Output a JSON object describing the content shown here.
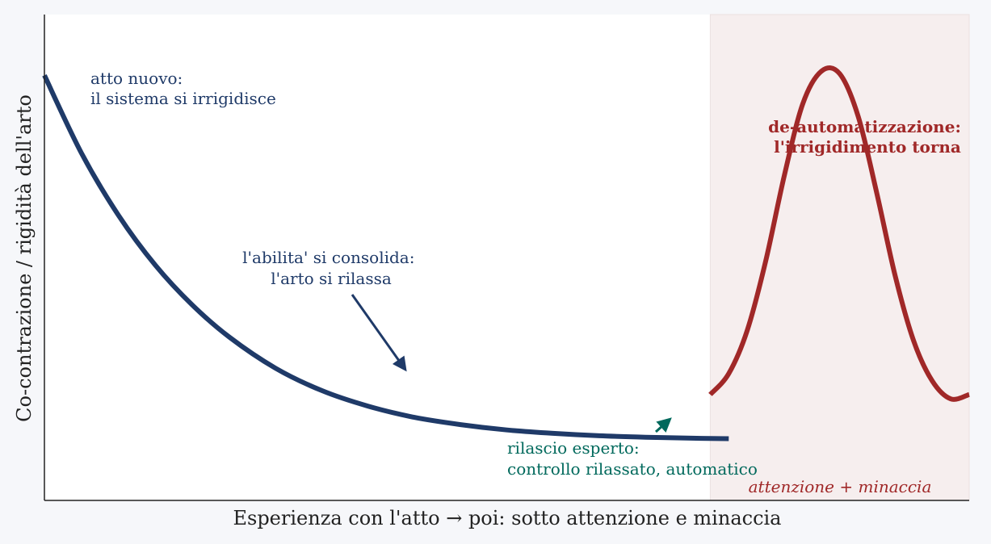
{
  "colors": {
    "page_bg": "#f6f7fa",
    "plot_bg": "#ffffff",
    "shaded_region": "#f6eeee",
    "learning_curve": "#1f3a68",
    "threat_curve": "#a02828",
    "expert_annotation": "#00695c",
    "axis": "#222222"
  },
  "chart_data": {
    "type": "line",
    "xlabel": "Esperienza con l'atto  →  poi: sotto attenzione e minaccia",
    "ylabel": "Co-contrazione / rigidità dell'arto",
    "xlim": [
      0,
      100
    ],
    "ylim": [
      0,
      100
    ],
    "grid": false,
    "ticks": false,
    "series": [
      {
        "role": "learning",
        "color": "#1f3a68",
        "x": [
          0,
          4,
          8,
          12,
          16,
          20,
          25,
          30,
          35,
          40,
          45,
          50,
          55,
          60,
          65,
          70,
          74
        ],
        "y": [
          87.5,
          71.5,
          58.7,
          48.4,
          40.2,
          33.6,
          27.2,
          22.6,
          19.4,
          17.1,
          15.6,
          14.5,
          13.8,
          13.3,
          13.0,
          12.8,
          12.7
        ]
      },
      {
        "role": "threat",
        "color": "#a02828",
        "x": [
          72,
          74,
          76,
          78,
          80,
          82,
          84,
          86,
          88,
          90,
          92,
          94,
          96,
          98,
          100
        ],
        "y": [
          21.8,
          26.1,
          35.0,
          49.3,
          66.8,
          81.6,
          88.3,
          87.8,
          79.0,
          63.3,
          46.2,
          32.8,
          24.6,
          20.9,
          21.8
        ]
      }
    ],
    "shaded_region": {
      "x_range": [
        72,
        100
      ],
      "label": "attenzione + minaccia"
    },
    "annotations": [
      {
        "id": "novice",
        "lines": [
          "atto nuovo:",
          "il sistema si irrigidisce"
        ]
      },
      {
        "id": "consolidation",
        "lines": [
          "l'abilita' si consolida:",
          "l'arto si rilassa"
        ],
        "arrow_to": {
          "x": 39,
          "y": 27
        }
      },
      {
        "id": "expert",
        "lines": [
          "rilascio esperto:",
          "controllo rilassato, automatico"
        ],
        "arrow_to": {
          "x": 67,
          "y": 18
        }
      },
      {
        "id": "deautomation",
        "lines": [
          "de-automatizzazione:",
          "l'irrigidimento torna"
        ]
      }
    ]
  }
}
